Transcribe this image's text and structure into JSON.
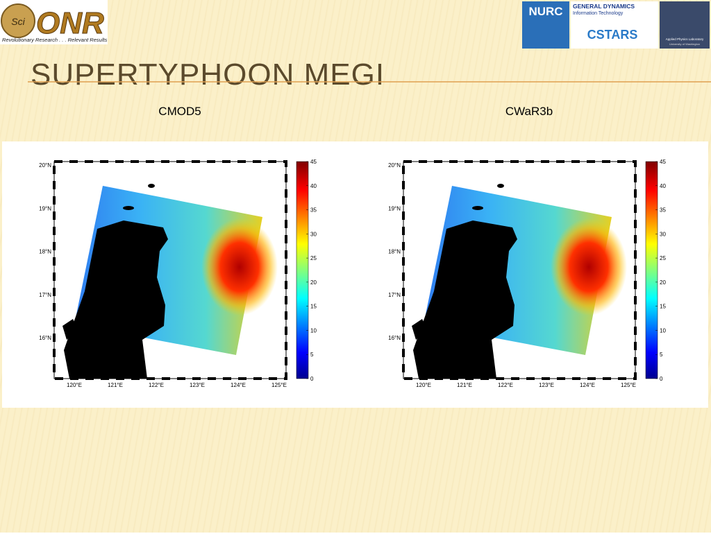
{
  "header": {
    "logo_left": {
      "seal": "Sci",
      "initials": "ONR",
      "tagline": "Revolutionary Research . . . Relevant Results"
    },
    "logos_right": [
      {
        "name": "NURC"
      },
      {
        "name": "GENERAL DYNAMICS",
        "subtitle": "Information Technology",
        "sub_name": "CSTARS"
      },
      {
        "name": "Applied Physics Laboratory",
        "subtitle": "University of Washington"
      }
    ]
  },
  "title": "SUPERTYPHOON MEGI",
  "panels": [
    {
      "label": "CMOD5"
    },
    {
      "label": "CWaR3b"
    }
  ],
  "map": {
    "lat_ticks": [
      "20°N",
      "19°N",
      "18°N",
      "17°N",
      "16°N"
    ],
    "lon_ticks": [
      "120°E",
      "121°E",
      "122°E",
      "123°E",
      "124°E",
      "125°E"
    ],
    "colorbar_ticks": [
      0,
      5,
      10,
      15,
      20,
      25,
      30,
      35,
      40,
      45
    ]
  }
}
